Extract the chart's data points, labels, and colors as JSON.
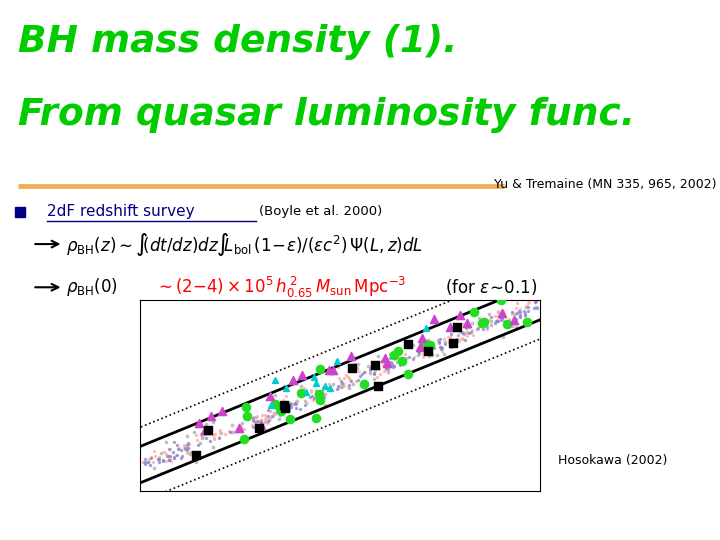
{
  "title_line1": "BH mass density (1).",
  "title_line2": "From quasar luminosity func.",
  "title_color": "#00cc00",
  "reference_line": "Yu & Tremaine (MN 335, 965, 2002)",
  "bullet_text": "2dF redshift survey",
  "bullet_ref": "(Boyle et al. 2000)",
  "hosokawa": "Hosokawa (2002)",
  "bg_color": "#ffffff",
  "orange_line_color": "#f0a040",
  "plot_bg": "#ffffff"
}
